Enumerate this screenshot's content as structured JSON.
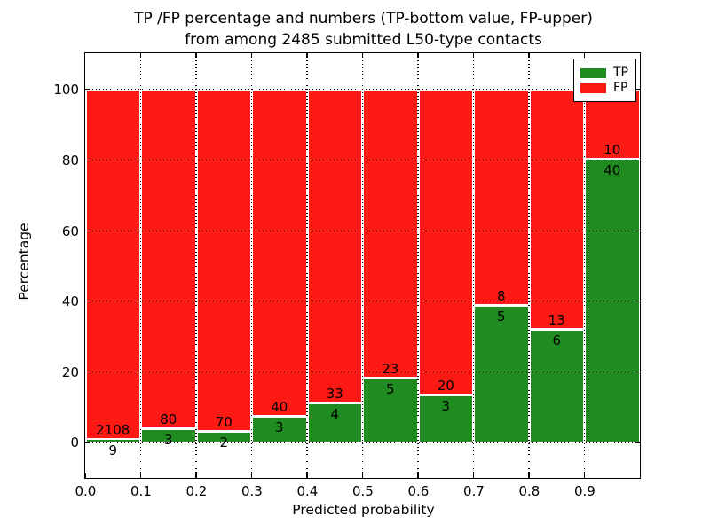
{
  "figure": {
    "title_line1": "TP /FP percentage and numbers (TP-bottom value, FP-upper)",
    "title_line2": "from among 2485 submitted L50-type contacts",
    "xlabel": "Predicted probability",
    "ylabel": "Percentage"
  },
  "legend": {
    "items": [
      {
        "label": "TP",
        "color": "#208b20"
      },
      {
        "label": "FP",
        "color": "#fd1a15"
      }
    ]
  },
  "chart_data": {
    "type": "bar",
    "stacked": true,
    "title": "TP /FP percentage and numbers (TP-bottom value, FP-upper) from among 2485 submitted L50-type contacts",
    "xlabel": "Predicted probability",
    "ylabel": "Percentage",
    "bin_edges": [
      0.0,
      0.1,
      0.2,
      0.3,
      0.4,
      0.5,
      0.6,
      0.7,
      0.8,
      0.9,
      1.0
    ],
    "series": [
      {
        "name": "TP",
        "color": "#208b20",
        "counts": [
          9,
          3,
          2,
          3,
          4,
          5,
          3,
          5,
          6,
          40
        ]
      },
      {
        "name": "FP",
        "color": "#fd1a15",
        "counts": [
          2108,
          80,
          70,
          40,
          33,
          23,
          20,
          8,
          13,
          10
        ]
      }
    ],
    "tp_percent": [
      0.43,
      3.61,
      2.78,
      6.98,
      10.81,
      17.86,
      13.04,
      38.46,
      31.58,
      80.0
    ],
    "note": "Each bar stacks TP (bottom, green) and FP (top, red) as percent of bin total (sums to 100%); annotated numbers are raw counts, TP below boundary, FP above",
    "xticks": [
      "0.0",
      "0.1",
      "0.2",
      "0.3",
      "0.4",
      "0.5",
      "0.6",
      "0.7",
      "0.8",
      "0.9"
    ],
    "yticks": [
      0,
      20,
      40,
      60,
      80,
      100
    ],
    "xlim": [
      0.0,
      1.0
    ],
    "ylim": [
      -10,
      110
    ],
    "grid": "dotted",
    "legend_position": "upper right"
  }
}
